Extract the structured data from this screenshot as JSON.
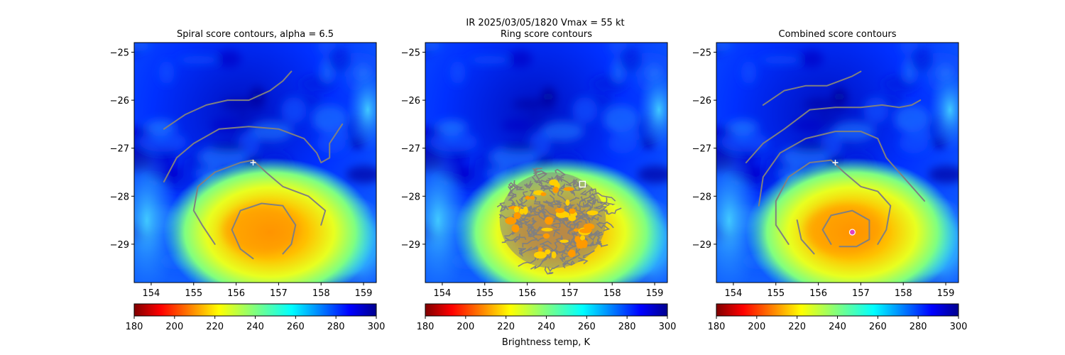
{
  "figure": {
    "suptitle_line1": "IR  2025/03/05/1820    Vmax = 55 kt",
    "colorbar_label": "Brightness temp, K"
  },
  "chart_data": [
    {
      "type": "heatmap",
      "title": "Spiral score contours, alpha =  6.5",
      "xlim": [
        153.6,
        159.3
      ],
      "ylim": [
        -29.8,
        -24.8
      ],
      "xticks": [
        154,
        155,
        156,
        157,
        158,
        159
      ],
      "yticks": [
        -25,
        -26,
        -27,
        -28,
        -29
      ],
      "center_marker": {
        "x": 156.4,
        "y": -27.3,
        "symbol": "+",
        "color": "#ffffff"
      },
      "contour_color": "#808080",
      "contours": [
        [
          [
            154.3,
            -26.6
          ],
          [
            154.8,
            -26.3
          ],
          [
            155.3,
            -26.1
          ],
          [
            155.8,
            -26.0
          ],
          [
            156.3,
            -26.0
          ],
          [
            156.8,
            -25.8
          ],
          [
            157.1,
            -25.6
          ],
          [
            157.3,
            -25.4
          ]
        ],
        [
          [
            154.3,
            -27.7
          ],
          [
            154.6,
            -27.2
          ],
          [
            155.0,
            -26.9
          ],
          [
            155.6,
            -26.6
          ],
          [
            156.3,
            -26.55
          ],
          [
            157.0,
            -26.6
          ],
          [
            157.6,
            -26.8
          ],
          [
            157.9,
            -27.1
          ],
          [
            158.0,
            -27.3
          ],
          [
            158.2,
            -27.2
          ],
          [
            158.2,
            -26.9
          ],
          [
            158.5,
            -26.5
          ]
        ],
        [
          [
            155.5,
            -29.0
          ],
          [
            155.2,
            -28.6
          ],
          [
            155.0,
            -28.3
          ],
          [
            155.1,
            -27.8
          ],
          [
            155.5,
            -27.5
          ],
          [
            156.1,
            -27.3
          ],
          [
            156.4,
            -27.25
          ],
          [
            156.7,
            -27.5
          ],
          [
            157.1,
            -27.8
          ],
          [
            157.7,
            -28.0
          ],
          [
            158.1,
            -28.3
          ],
          [
            158.0,
            -28.6
          ]
        ],
        [
          [
            156.4,
            -29.3
          ],
          [
            156.1,
            -29.1
          ],
          [
            155.9,
            -28.7
          ],
          [
            156.1,
            -28.3
          ],
          [
            156.6,
            -28.15
          ],
          [
            157.1,
            -28.2
          ],
          [
            157.4,
            -28.6
          ],
          [
            157.3,
            -29.0
          ],
          [
            157.1,
            -29.2
          ]
        ]
      ],
      "colorbar": {
        "cmap": "jet_r",
        "vmin": 180,
        "vmax": 300,
        "ticks": [
          180,
          200,
          220,
          240,
          260,
          280,
          300
        ]
      }
    },
    {
      "type": "heatmap",
      "title": "Ring score contours",
      "xlim": [
        153.6,
        159.3
      ],
      "ylim": [
        -29.8,
        -24.8
      ],
      "xticks": [
        154,
        155,
        156,
        157,
        158,
        159
      ],
      "yticks": [
        -25,
        -26,
        -27,
        -28,
        -29
      ],
      "center_marker": {
        "x": 157.3,
        "y": -27.75,
        "symbol": "square",
        "color": "#ffffff"
      },
      "contour_color": "#808080",
      "ring_region": {
        "cx": 156.6,
        "cy": -28.5,
        "rx_deg": 1.25,
        "ry_deg": 1.0
      },
      "colorbar": {
        "cmap": "jet_r",
        "vmin": 180,
        "vmax": 300,
        "ticks": [
          180,
          200,
          220,
          240,
          260,
          280,
          300
        ]
      }
    },
    {
      "type": "heatmap",
      "title": "Combined score contours",
      "xlim": [
        153.6,
        159.3
      ],
      "ylim": [
        -29.8,
        -24.8
      ],
      "xticks": [
        154,
        155,
        156,
        157,
        158,
        159
      ],
      "yticks": [
        -25,
        -26,
        -27,
        -28,
        -29
      ],
      "center_marker": {
        "x": 156.4,
        "y": -27.3,
        "symbol": "+",
        "color": "#ffffff"
      },
      "combined_marker": {
        "x": 156.8,
        "y": -28.75,
        "symbol": "circle",
        "color": "#e040c0"
      },
      "contour_color": "#808080",
      "contours": [
        [
          [
            154.7,
            -26.1
          ],
          [
            155.2,
            -25.8
          ],
          [
            155.7,
            -25.7
          ],
          [
            156.2,
            -25.7
          ],
          [
            156.5,
            -25.6
          ],
          [
            156.8,
            -25.5
          ],
          [
            157.0,
            -25.4
          ]
        ],
        [
          [
            154.3,
            -27.3
          ],
          [
            154.7,
            -26.9
          ],
          [
            155.2,
            -26.6
          ],
          [
            155.8,
            -26.2
          ],
          [
            156.4,
            -26.15
          ],
          [
            157.0,
            -26.15
          ],
          [
            157.5,
            -26.1
          ],
          [
            157.9,
            -26.15
          ],
          [
            158.2,
            -26.1
          ],
          [
            158.4,
            -26.0
          ]
        ],
        [
          [
            154.6,
            -28.2
          ],
          [
            154.7,
            -27.6
          ],
          [
            155.1,
            -27.1
          ],
          [
            155.7,
            -26.8
          ],
          [
            156.4,
            -26.65
          ],
          [
            157.0,
            -26.65
          ],
          [
            157.4,
            -26.8
          ],
          [
            157.6,
            -27.2
          ],
          [
            157.9,
            -27.5
          ],
          [
            158.2,
            -27.8
          ],
          [
            158.5,
            -28.1
          ]
        ],
        [
          [
            155.3,
            -29.0
          ],
          [
            155.0,
            -28.6
          ],
          [
            155.0,
            -28.1
          ],
          [
            155.3,
            -27.6
          ],
          [
            155.8,
            -27.3
          ],
          [
            156.3,
            -27.25
          ],
          [
            156.6,
            -27.5
          ],
          [
            157.0,
            -27.8
          ],
          [
            157.4,
            -27.9
          ],
          [
            157.7,
            -28.2
          ],
          [
            157.6,
            -28.7
          ],
          [
            157.4,
            -29.0
          ]
        ],
        [
          [
            155.9,
            -29.2
          ],
          [
            155.6,
            -28.9
          ],
          [
            155.5,
            -28.5
          ]
        ],
        [
          [
            156.3,
            -29.0
          ],
          [
            156.1,
            -28.7
          ],
          [
            156.3,
            -28.4
          ],
          [
            156.8,
            -28.3
          ],
          [
            157.2,
            -28.5
          ],
          [
            157.2,
            -28.9
          ],
          [
            156.9,
            -29.05
          ],
          [
            156.5,
            -29.05
          ]
        ]
      ],
      "colorbar": {
        "cmap": "jet_r",
        "vmin": 180,
        "vmax": 300,
        "ticks": [
          180,
          200,
          220,
          240,
          260,
          280,
          300
        ]
      }
    }
  ],
  "panel_titles": [
    "Spiral score contours, alpha =  6.5",
    "Ring score contours",
    "Combined score contours"
  ]
}
